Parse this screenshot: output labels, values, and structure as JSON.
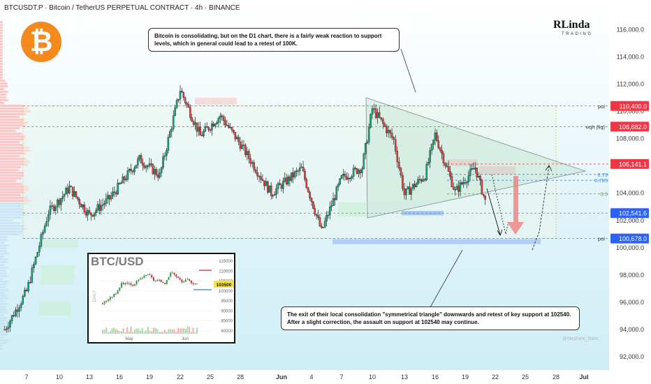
{
  "header": "BTCUSDT.P · Bitcoin / TetherUS PERPETUAL CONTRACT · 4h · BINANCE",
  "logo": {
    "symbol": "₿",
    "color": "#f5891e"
  },
  "brand": {
    "top": "RLinda",
    "bottom": "TRADING"
  },
  "notes": {
    "top": "Bitcoin is consolidating, but on the D1 chart, there is a fairly weak reaction to support levels, which in general could lead to a retest of 100K.",
    "bottom_line1": "The exit of their local consolidation \"symmetrical triangle\" downwards and retest of key support at 102540.",
    "bottom_line2": "After a slight correction, the assault on support at 102540 may continue."
  },
  "watermark": "@Nephew_Sam_",
  "chart_data": {
    "type": "candlestick",
    "symbol": "BTCUSDT.P",
    "timeframe": "4h",
    "ylim": [
      91800,
      117300
    ],
    "y_ticks": [
      92000,
      94000,
      96000,
      98000,
      100000,
      102000,
      104000,
      106000,
      108000,
      110000,
      112000,
      114000,
      116000
    ],
    "y_tick_labels": [
      "92,000.0",
      "94,000.0",
      "96,000.0",
      "98,000.0",
      "100,000.0",
      "102,000.0",
      "104,000.0",
      "106,000.0",
      "108,000.0",
      "110,000.0",
      "112,000.0",
      "114,000.0",
      "116,000.0"
    ],
    "x_labels": [
      "7",
      "10",
      "13",
      "16",
      "19",
      "22",
      "25",
      "28",
      "Jun",
      "4",
      "7",
      "10",
      "13",
      "16",
      "19",
      "22",
      "25",
      "28",
      "Jul"
    ],
    "price_tags": [
      {
        "label": "110,400.0",
        "value": 110400,
        "color": "#f23645"
      },
      {
        "label": "108,882.0",
        "value": 108882,
        "color": "#f23645"
      },
      {
        "label": "106,141.1",
        "value": 106141,
        "color": "#f23645"
      },
      {
        "label": "102,541.6",
        "value": 102541,
        "color": "#2962ff"
      },
      {
        "label": "100,678.0",
        "value": 100678,
        "color": "#2962ff"
      }
    ],
    "levels": [
      {
        "label": "poi",
        "value": 110400
      },
      {
        "label": "eqh (liq)",
        "value": 108882
      },
      {
        "label": "0.79",
        "value": 105380
      },
      {
        "label": "0.705",
        "value": 104950
      },
      {
        "label": "0.5",
        "value": 103950
      },
      {
        "label": "poi",
        "value": 100678
      }
    ],
    "anchors": [
      {
        "x": "May 5",
        "price": 94000
      },
      {
        "x": "May 7",
        "price": 96800
      },
      {
        "x": "May 9",
        "price": 102600
      },
      {
        "x": "May 11",
        "price": 104400
      },
      {
        "x": "May 13",
        "price": 102400
      },
      {
        "x": "May 15",
        "price": 103600
      },
      {
        "x": "May 18",
        "price": 106500
      },
      {
        "x": "May 20",
        "price": 105300
      },
      {
        "x": "May 22",
        "price": 111600
      },
      {
        "x": "May 24",
        "price": 108200
      },
      {
        "x": "May 26",
        "price": 109700
      },
      {
        "x": "May 28",
        "price": 107600
      },
      {
        "x": "May 31",
        "price": 104000
      },
      {
        "x": "Jun 3",
        "price": 105800
      },
      {
        "x": "Jun 5",
        "price": 101200
      },
      {
        "x": "Jun 7",
        "price": 105100
      },
      {
        "x": "Jun 9",
        "price": 105900
      },
      {
        "x": "Jun 10",
        "price": 110200
      },
      {
        "x": "Jun 12",
        "price": 107900
      },
      {
        "x": "Jun 13",
        "price": 103900
      },
      {
        "x": "Jun 15",
        "price": 105300
      },
      {
        "x": "Jun 16",
        "price": 108300
      },
      {
        "x": "Jun 18",
        "price": 104100
      },
      {
        "x": "Jun 20",
        "price": 105900
      },
      {
        "x": "Jun 21",
        "price": 103400
      }
    ],
    "inset": {
      "title": "BTC/USD",
      "timeframe": "DAILY",
      "y_tick_labels": [
        "115000",
        "110000",
        "105000",
        "100000",
        "95000",
        "90000",
        "85000",
        "80000"
      ],
      "x_labels": [
        "May",
        "Jun"
      ],
      "price_tag": "103500"
    }
  }
}
